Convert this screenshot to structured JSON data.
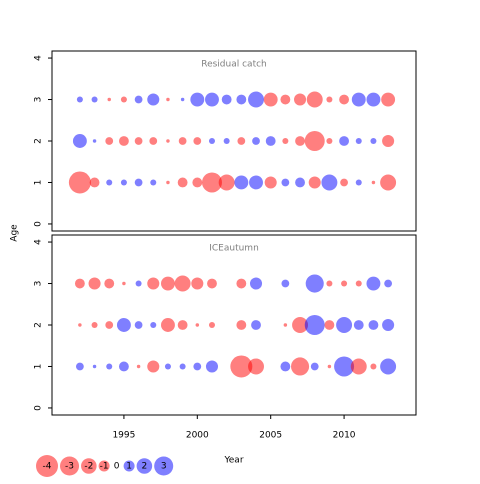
{
  "xlabel": "Year",
  "ylabel": "Age",
  "legend": {
    "values": [
      -4,
      -3,
      -2,
      -1,
      0,
      1,
      2,
      3
    ]
  },
  "chart_data": [
    {
      "type": "bubble",
      "title": "Residual catch",
      "x": [
        1992,
        1993,
        1994,
        1995,
        1996,
        1997,
        1998,
        1999,
        2000,
        2001,
        2002,
        2003,
        2004,
        2005,
        2006,
        2007,
        2008,
        2009,
        2010,
        2011,
        2012,
        2013
      ],
      "ages": [
        1,
        2,
        3
      ],
      "residuals": [
        [
          -4,
          -0.8,
          0.3,
          0.3,
          0.5,
          0.3,
          -0.1,
          -0.8,
          -0.8,
          -3.3,
          -2.1,
          1.6,
          1.6,
          -1.2,
          0.5,
          0.8,
          -1.2,
          2.1,
          -0.5,
          0.3,
          -0.1,
          -2.1
        ],
        [
          1.6,
          0.1,
          -0.5,
          -0.8,
          -0.5,
          -0.5,
          -0.1,
          -0.5,
          -0.5,
          0.3,
          0.3,
          -0.5,
          0.5,
          0.8,
          -0.3,
          -0.8,
          -3.3,
          -0.3,
          0.8,
          0.3,
          0.3,
          -1.2
        ],
        [
          0.3,
          0.3,
          -0.1,
          -0.3,
          0.5,
          1.2,
          -0.1,
          0.1,
          1.6,
          1.6,
          0.8,
          0.8,
          2.1,
          -1.6,
          -0.8,
          -1.2,
          -2.1,
          -0.3,
          -0.8,
          1.6,
          1.6,
          -1.6
        ]
      ],
      "xlim": [
        1990.1,
        2014.9
      ],
      "ylim": [
        -0.17,
        4.17
      ],
      "yticks": [
        0,
        1,
        2,
        3,
        4
      ],
      "positive_color": "#0000ff",
      "negative_color": "#ff0000"
    },
    {
      "type": "bubble",
      "title": "ICEautumn",
      "x": [
        1992,
        1993,
        1994,
        1995,
        1996,
        1997,
        1998,
        1999,
        2000,
        2001,
        2002,
        2003,
        2004,
        2005,
        2006,
        2007,
        2008,
        2009,
        2010,
        2011,
        2012,
        2013
      ],
      "ages": [
        1,
        2,
        3
      ],
      "residuals": [
        [
          0.5,
          0.1,
          0.3,
          0.8,
          -0.1,
          -1.2,
          0.3,
          0.3,
          0.5,
          1.2,
          null,
          -4,
          -2.1,
          null,
          0.8,
          -2.7,
          0.5,
          -0.1,
          3.3,
          -2.1,
          -0.3,
          2.1
        ],
        [
          -0.1,
          -0.3,
          -0.5,
          1.6,
          0.5,
          0.3,
          -1.6,
          -0.8,
          -0.1,
          -0.3,
          null,
          -0.8,
          0.8,
          null,
          -0.1,
          -2.1,
          3.3,
          -0.8,
          2.1,
          0.8,
          0.8,
          1.2
        ],
        [
          -0.8,
          -1.2,
          -0.8,
          -0.1,
          0.3,
          -1.2,
          -1.6,
          -2.1,
          -1.2,
          -0.8,
          null,
          -0.8,
          1.2,
          null,
          0.5,
          null,
          2.7,
          -0.3,
          -0.3,
          -0.3,
          1.6,
          0.5
        ]
      ],
      "xlim": [
        1990.1,
        2014.9
      ],
      "ylim": [
        -0.17,
        4.17
      ],
      "yticks": [
        0,
        1,
        2,
        3,
        4
      ],
      "xticks": [
        1995,
        2000,
        2005,
        2010
      ],
      "positive_color": "#0000ff",
      "negative_color": "#ff0000"
    }
  ]
}
